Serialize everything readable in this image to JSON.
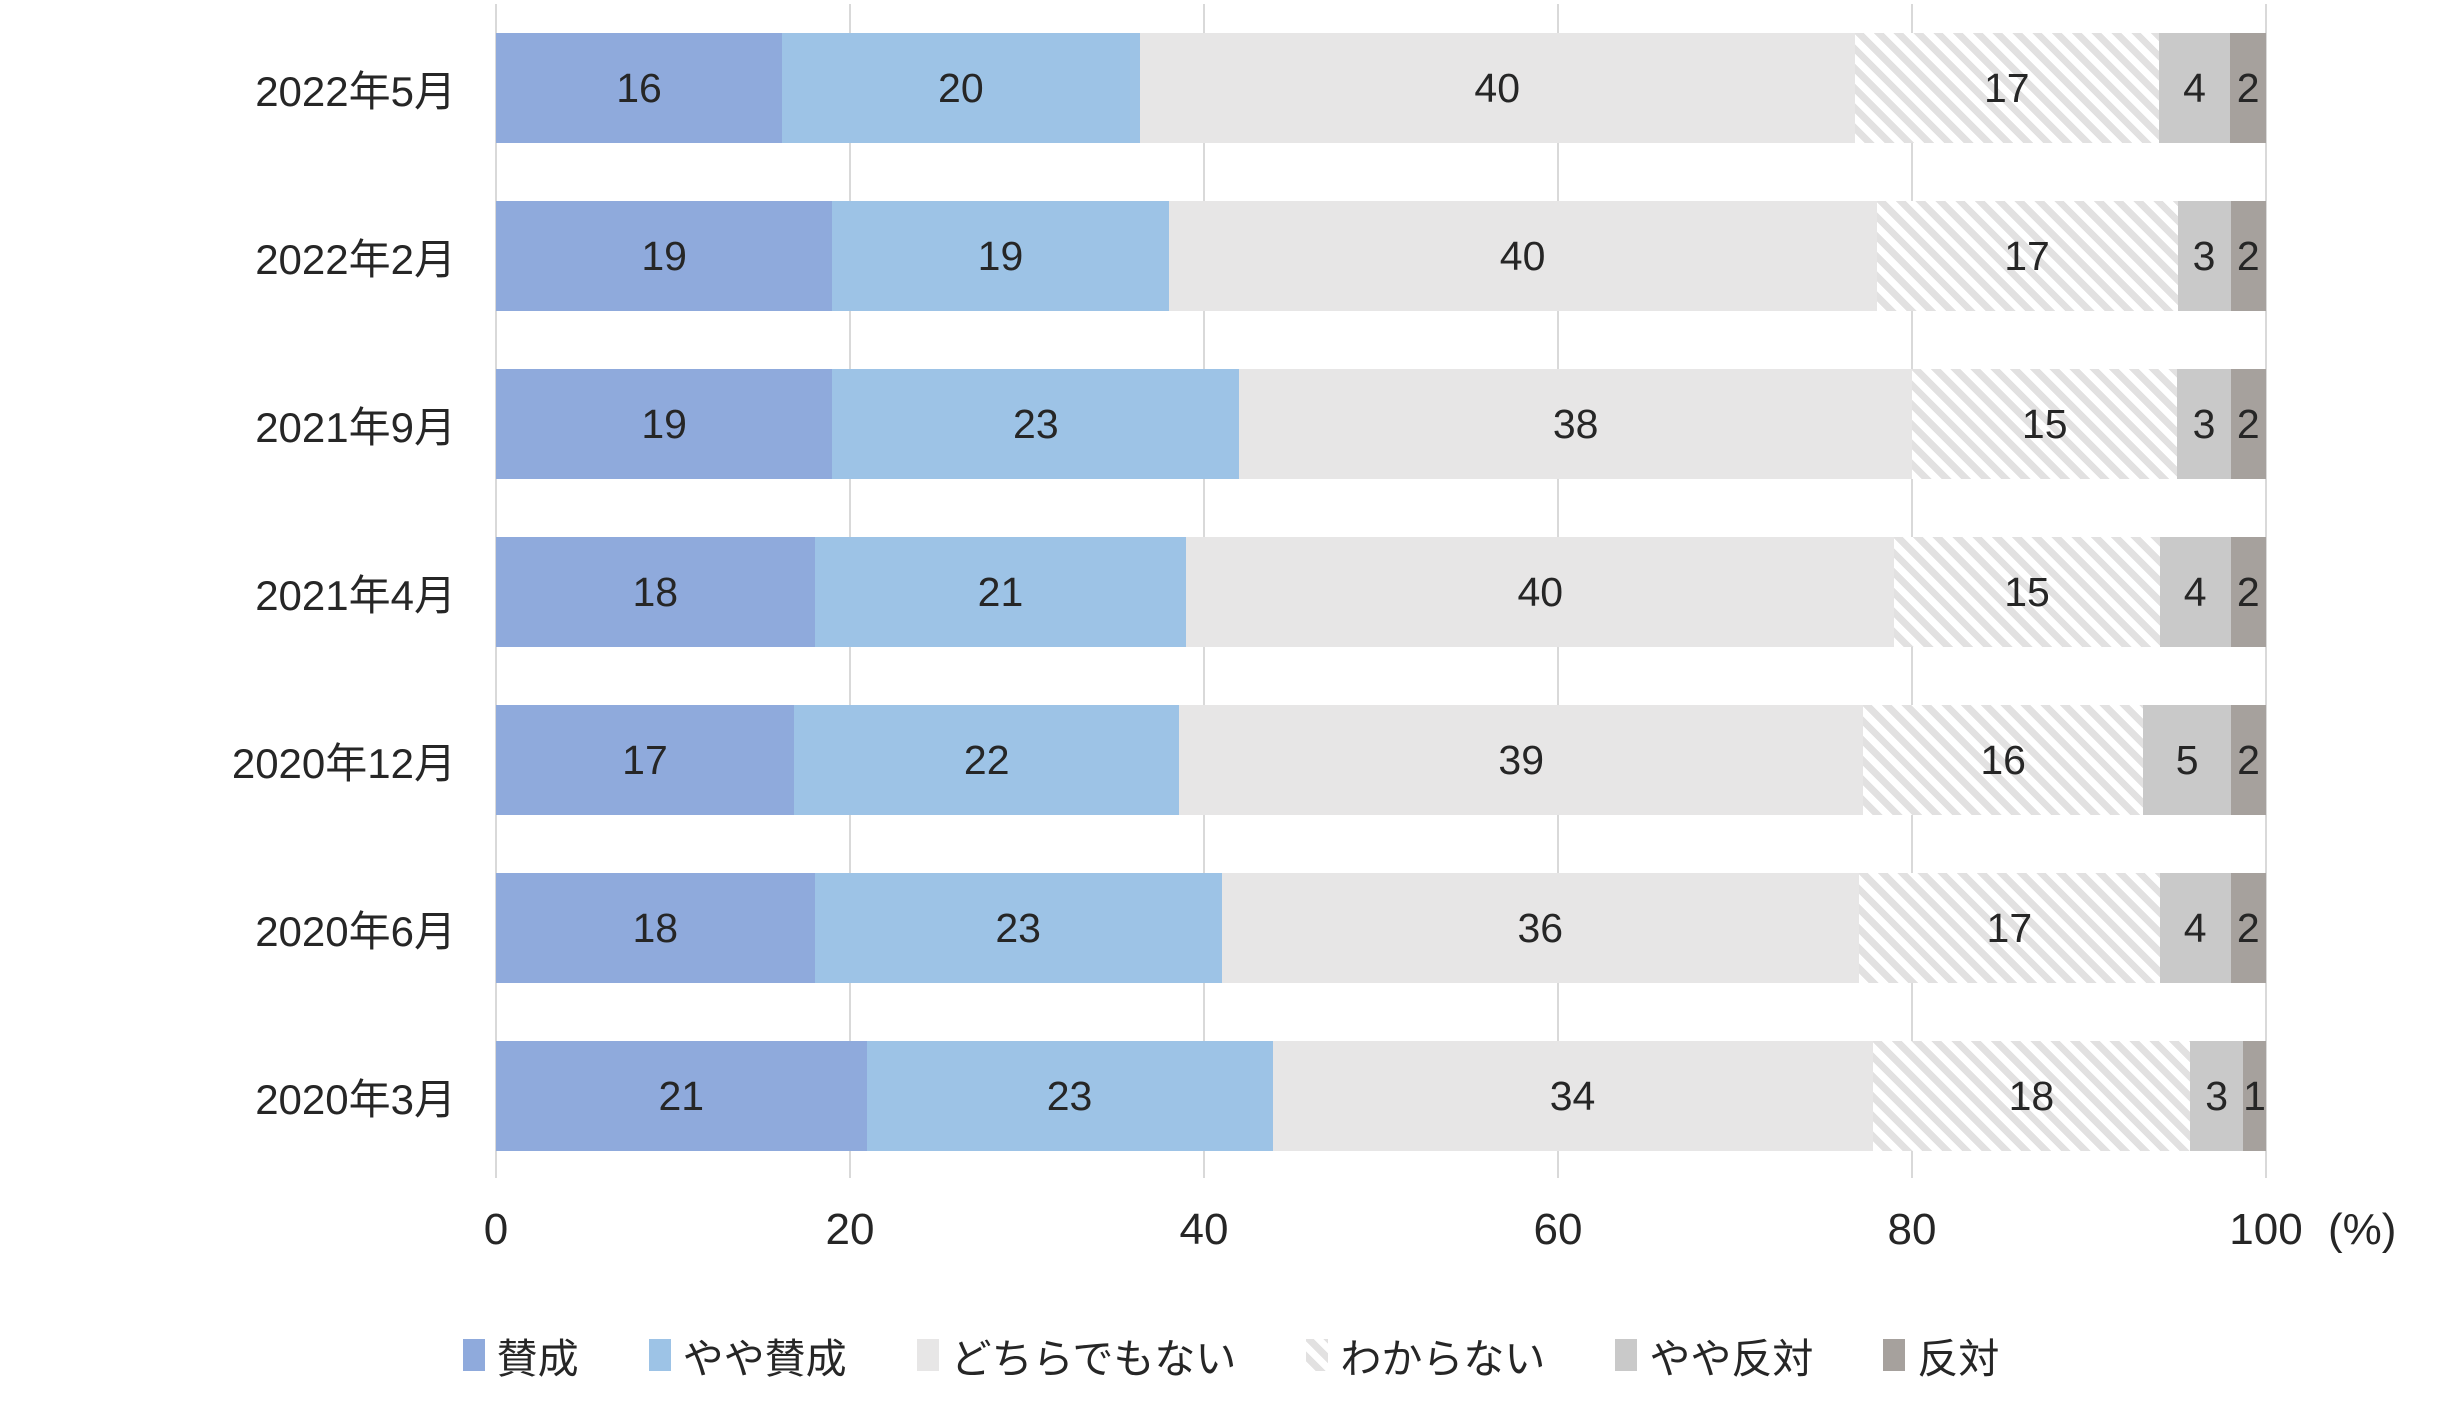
{
  "chart_data": {
    "type": "bar",
    "orientation": "horizontal-stacked",
    "title": "",
    "categories": [
      "2022年5月",
      "2022年2月",
      "2021年9月",
      "2021年4月",
      "2020年12月",
      "2020年6月",
      "2020年3月"
    ],
    "series": [
      {
        "name": "賛成",
        "color": "#8FAADC",
        "pattern": "solid",
        "values": [
          16,
          19,
          19,
          18,
          17,
          18,
          21
        ]
      },
      {
        "name": "やや賛成",
        "color": "#9DC3E6",
        "pattern": "solid",
        "values": [
          20,
          19,
          23,
          21,
          22,
          23,
          23
        ]
      },
      {
        "name": "どちらでもない",
        "color": "#E7E6E6",
        "pattern": "solid",
        "values": [
          40,
          40,
          38,
          40,
          39,
          36,
          34
        ]
      },
      {
        "name": "わからない",
        "color": "#FFFFFF",
        "pattern": "diagonal-hatch",
        "hatch_color": "#E2E1E1",
        "values": [
          17,
          17,
          15,
          15,
          16,
          17,
          18
        ]
      },
      {
        "name": "やや反対",
        "color": "#C9C9C9",
        "pattern": "solid",
        "values": [
          4,
          3,
          3,
          4,
          5,
          4,
          3
        ]
      },
      {
        "name": "反対",
        "color": "#A6A19D",
        "pattern": "solid",
        "values": [
          2,
          2,
          2,
          2,
          2,
          2,
          1
        ]
      }
    ],
    "x_axis": {
      "ticks": [
        0,
        20,
        40,
        60,
        80,
        100
      ],
      "range": [
        0,
        100
      ],
      "unit_label": "(%)"
    },
    "grid": true,
    "gridline_color": "#D9D9D9",
    "legend_position": "bottom",
    "text_color": "#262626"
  }
}
